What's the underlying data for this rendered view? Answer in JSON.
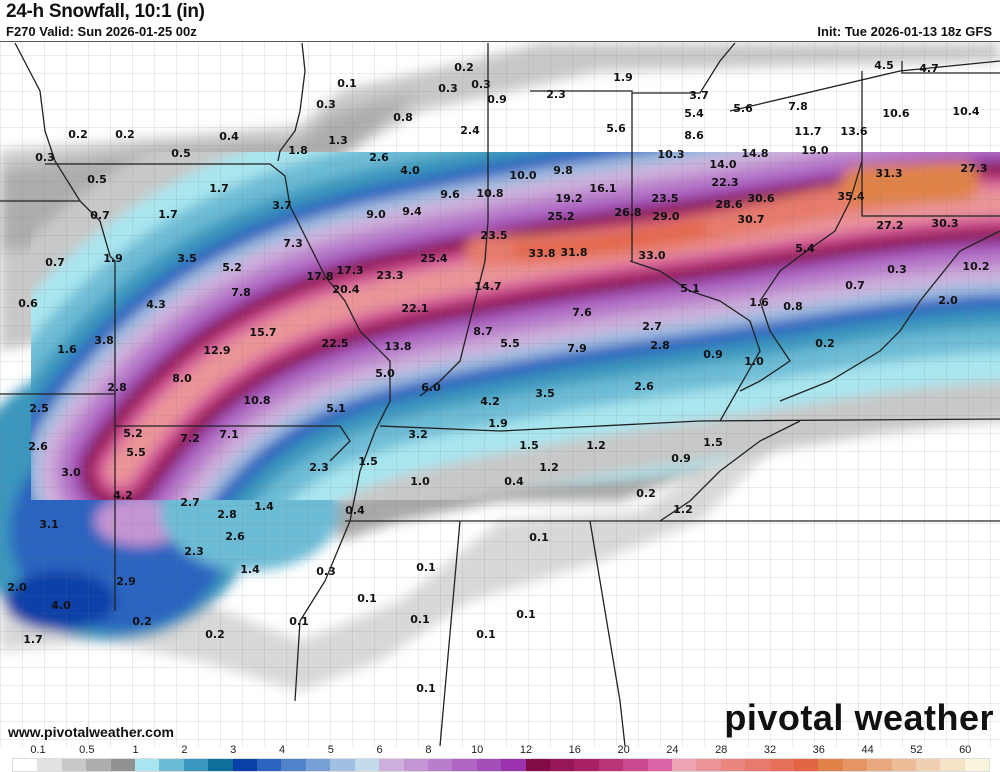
{
  "header": {
    "title": "24-h Snowfall, 10:1 (in)",
    "valid": "F270 Valid: Sun 2026-01-25 00z",
    "init": "Init: Tue 2026-01-13 18z GFS"
  },
  "footer": {
    "website": "www.pivotalweather.com",
    "logo": "pivotal weather"
  },
  "legend": {
    "labels": [
      "0.1",
      "0.5",
      "1",
      "2",
      "3",
      "4",
      "5",
      "6",
      "8",
      "10",
      "12",
      "16",
      "20",
      "24",
      "28",
      "32",
      "36",
      "44",
      "52",
      "60"
    ],
    "colors": [
      "#ffffff",
      "#e2e2e2",
      "#c8c8c8",
      "#adadad",
      "#929292",
      "#a9e6ef",
      "#6dbcd6",
      "#3a97bd",
      "#0f6f9c",
      "#0b3fa8",
      "#2a63c0",
      "#4f84cb",
      "#77a1d5",
      "#a0bfe1",
      "#c3dcea",
      "#cfb0dc",
      "#c494d3",
      "#b97ecb",
      "#ae66c2",
      "#a34fb9",
      "#9a33ad",
      "#830b45",
      "#95175a",
      "#a82166",
      "#b93578",
      "#c9488e",
      "#da62a5",
      "#eea3b5",
      "#ea9497",
      "#e9867f",
      "#e77a6c",
      "#e6705a",
      "#e46544",
      "#e0834a",
      "#e69564",
      "#e9a97e",
      "#ecbd98",
      "#f0d0b0",
      "#f5e3c8",
      "#f9f5da"
    ]
  },
  "map": {
    "point_values": [
      "0.1",
      "0.2",
      "0.3",
      "0.3",
      "0.3",
      "0.2",
      "0.2",
      "0.4",
      "0.5",
      "0.3",
      "0.5",
      "0.7",
      "0.7",
      "0.6",
      "1.6",
      "0.8",
      "1.3",
      "1.8",
      "2.6",
      "4.0",
      "2.4",
      "0.9",
      "1.7",
      "1.7",
      "3.7",
      "1.9",
      "3.5",
      "5.2",
      "7.3",
      "9.0",
      "9.4",
      "9.6",
      "10.8",
      "7.8",
      "4.3",
      "3.8",
      "17.8",
      "17.3",
      "20.4",
      "23.3",
      "25.4",
      "22.1",
      "15.7",
      "12.9",
      "22.5",
      "13.8",
      "8.0",
      "2.8",
      "10.8",
      "5.1",
      "5.0",
      "6.0",
      "4.2",
      "3.5",
      "2.5",
      "2.6",
      "5.2",
      "5.5",
      "7.2",
      "7.1",
      "3.0",
      "4.2",
      "2.7",
      "2.8",
      "1.4",
      "2.6",
      "3.1",
      "2.3",
      "1.4",
      "2.0",
      "2.9",
      "4.0",
      "1.7",
      "0.2",
      "0.2",
      "2.3",
      "1.5",
      "3.2",
      "1.9",
      "1.0",
      "0.4",
      "1.5",
      "1.2",
      "1.2",
      "0.9",
      "1.5",
      "0.2",
      "1.2",
      "0.4",
      "0.3",
      "0.1",
      "0.1",
      "0.1",
      "0.1",
      "0.1",
      "0.1",
      "0.1",
      "0.1",
      "1.9",
      "2.3",
      "3.7",
      "5.4",
      "5.6",
      "7.8",
      "5.6",
      "8.6",
      "10.3",
      "14.8",
      "11.7",
      "13.6",
      "19.0",
      "10.6",
      "10.4",
      "4.5",
      "4.7",
      "10.0",
      "9.8",
      "16.1",
      "14.0",
      "22.3",
      "19.2",
      "25.2",
      "23.5",
      "26.8",
      "29.0",
      "28.6",
      "30.6",
      "30.7",
      "35.4",
      "31.3",
      "27.3",
      "27.2",
      "30.3",
      "23.5",
      "33.8",
      "31.8",
      "33.0",
      "5.4",
      "14.7",
      "0.3",
      "10.2",
      "0.7",
      "5.1",
      "1.6",
      "0.8",
      "2.0",
      "2.7",
      "7.6",
      "8.7",
      "5.5",
      "7.9",
      "2.8",
      "0.9",
      "1.0",
      "0.2",
      "2.6"
    ]
  }
}
